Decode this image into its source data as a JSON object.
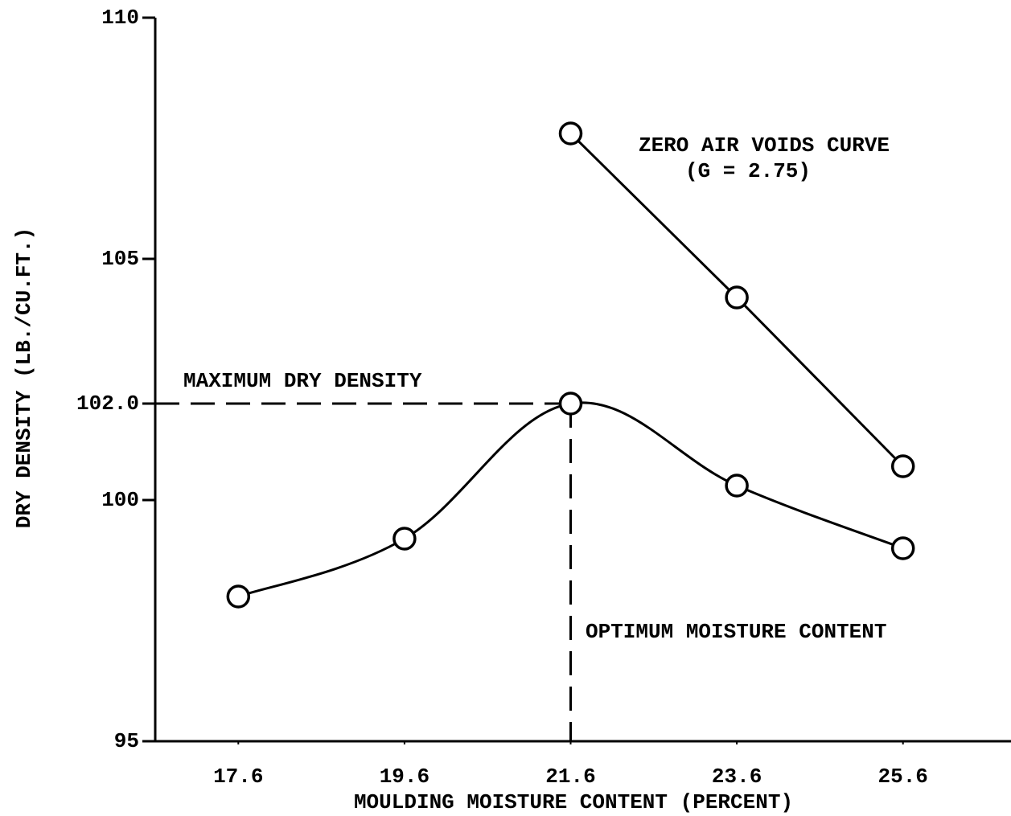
{
  "chart_data": {
    "type": "line",
    "xlabel": "MOULDING MOISTURE CONTENT (PERCENT)",
    "ylabel": "DRY DENSITY (LB./CU.FT.)",
    "x": [
      17.6,
      19.6,
      21.6,
      23.6,
      25.6
    ],
    "series": [
      {
        "values": [
          98.0,
          99.2,
          102.0,
          100.3,
          99.0
        ],
        "color": "#000000",
        "smooth": true
      },
      {
        "values": [
          null,
          null,
          107.6,
          104.2,
          100.7
        ],
        "color": "#000000",
        "smooth": false
      }
    ],
    "xlim": [
      16.6,
      26.9
    ],
    "ylim": [
      95,
      110
    ],
    "xticks": [
      17.6,
      19.6,
      21.6,
      23.6,
      25.6
    ],
    "yticks": [
      95,
      100,
      {
        "value": 102,
        "label": "102.0"
      },
      105,
      110
    ],
    "annotations": [
      "MAXIMUM DRY DENSITY",
      "OPTIMUM MOISTURE CONTENT",
      "ZERO AIR VOIDS CURVE",
      "(G = 2.75)"
    ]
  }
}
